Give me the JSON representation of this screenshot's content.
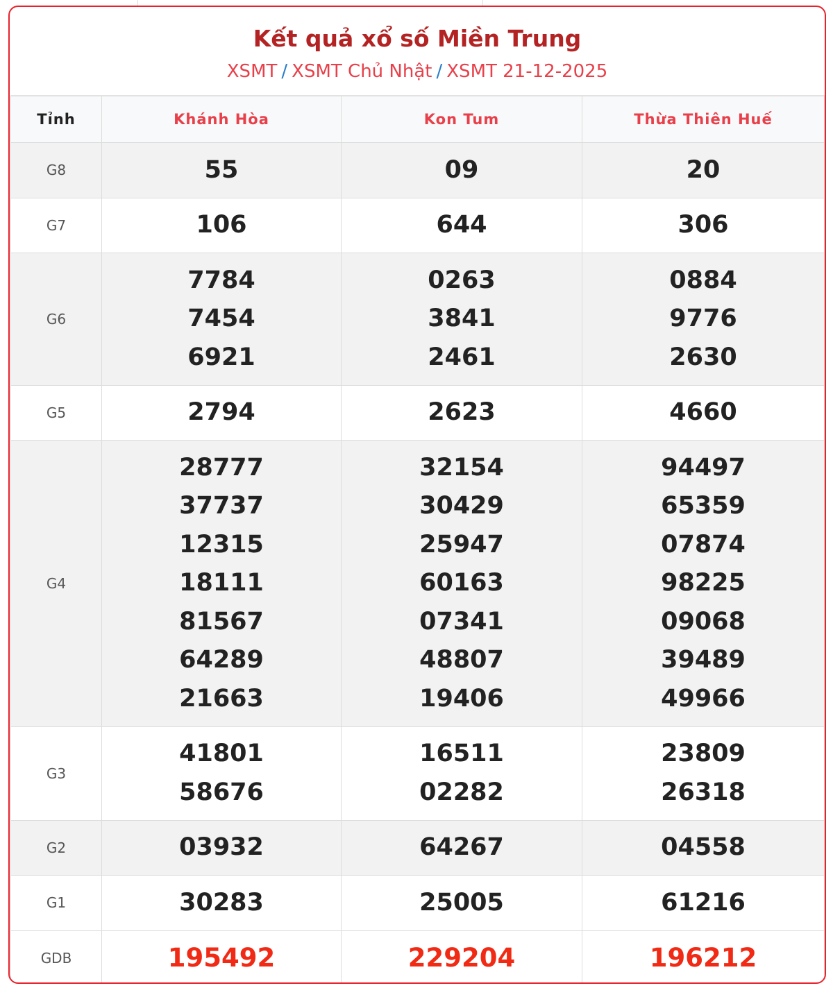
{
  "header": {
    "title": "Kết quả xổ số Miền Trung",
    "breadcrumbs": [
      "XSMT",
      "XSMT Chủ Nhật",
      "XSMT 21-12-2025"
    ],
    "separator": "/"
  },
  "table": {
    "first_col_header": "Tỉnh",
    "provinces": [
      "Khánh Hòa",
      "Kon Tum",
      "Thừa Thiên Huế"
    ],
    "rows": [
      {
        "label": "G8",
        "values": [
          [
            "55"
          ],
          [
            "09"
          ],
          [
            "20"
          ]
        ]
      },
      {
        "label": "G7",
        "values": [
          [
            "106"
          ],
          [
            "644"
          ],
          [
            "306"
          ]
        ]
      },
      {
        "label": "G6",
        "values": [
          [
            "7784",
            "7454",
            "6921"
          ],
          [
            "0263",
            "3841",
            "2461"
          ],
          [
            "0884",
            "9776",
            "2630"
          ]
        ]
      },
      {
        "label": "G5",
        "values": [
          [
            "2794"
          ],
          [
            "2623"
          ],
          [
            "4660"
          ]
        ]
      },
      {
        "label": "G4",
        "values": [
          [
            "28777",
            "37737",
            "12315",
            "18111",
            "81567",
            "64289",
            "21663"
          ],
          [
            "32154",
            "30429",
            "25947",
            "60163",
            "07341",
            "48807",
            "19406"
          ],
          [
            "94497",
            "65359",
            "07874",
            "98225",
            "09068",
            "39489",
            "49966"
          ]
        ]
      },
      {
        "label": "G3",
        "values": [
          [
            "41801",
            "58676"
          ],
          [
            "16511",
            "02282"
          ],
          [
            "23809",
            "26318"
          ]
        ]
      },
      {
        "label": "G2",
        "values": [
          [
            "03932"
          ],
          [
            "64267"
          ],
          [
            "04558"
          ]
        ]
      },
      {
        "label": "G1",
        "values": [
          [
            "30283"
          ],
          [
            "25005"
          ],
          [
            "61216"
          ]
        ]
      },
      {
        "label": "GDB",
        "values": [
          [
            "195492"
          ],
          [
            "229204"
          ],
          [
            "196212"
          ]
        ]
      }
    ]
  },
  "colors": {
    "accent": "#e8222a",
    "title": "#b42323",
    "special": "#f02a14",
    "link_sep": "#2a7ec8"
  }
}
